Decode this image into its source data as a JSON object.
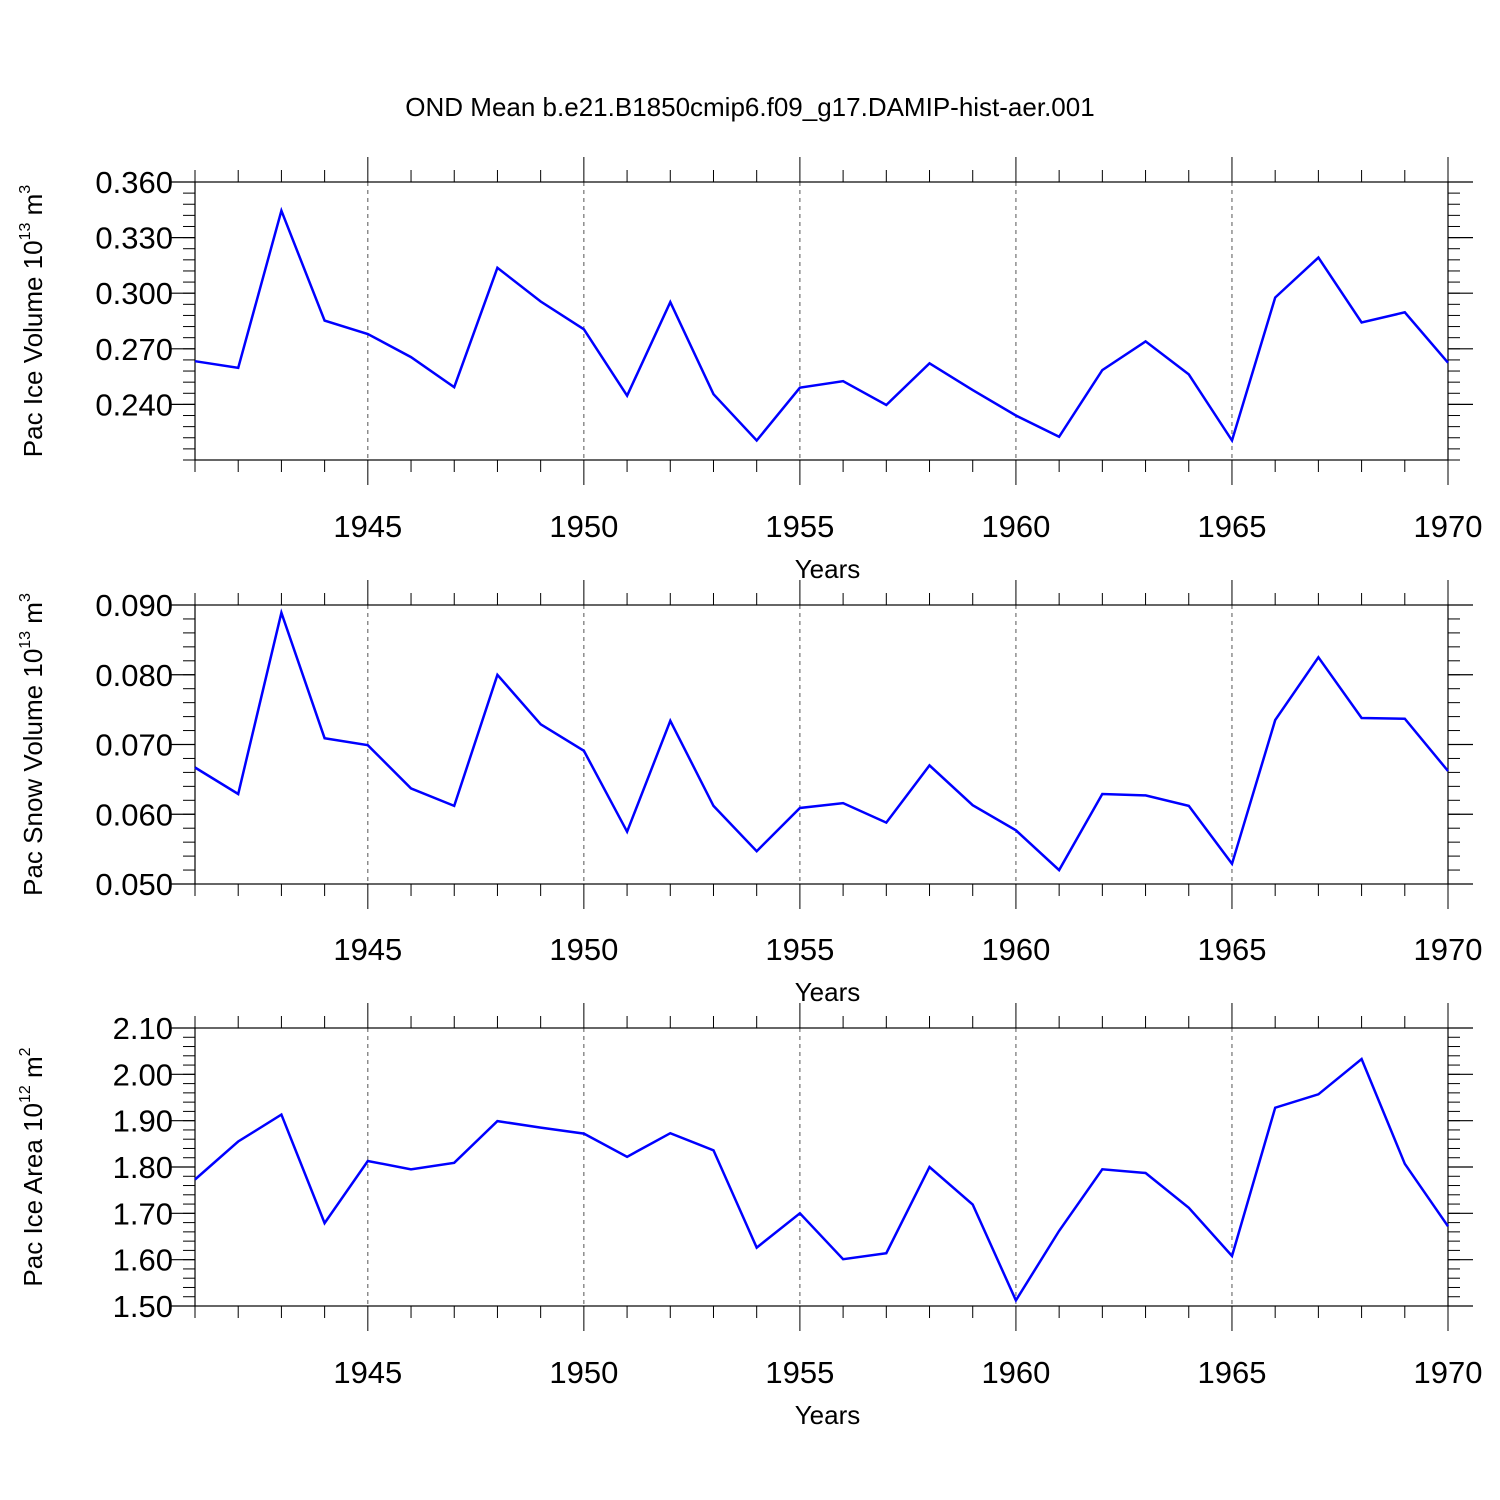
{
  "title": "OND Mean b.e21.B1850cmip6.f09_g17.DAMIP-hist-aer.001",
  "colors": {
    "line": "#0000ff",
    "axis": "#000000",
    "grid": "#555555"
  },
  "chart_data": [
    {
      "type": "line",
      "xlabel": "Years",
      "ylabel_main": "Pac Ice Volume 10",
      "ylabel_exp": "13",
      "ylabel_unit": " m",
      "ylabel_unit_exp": "3",
      "xlim": [
        1941,
        1970
      ],
      "ylim": [
        0.21,
        0.36
      ],
      "yticks": [
        0.24,
        0.27,
        0.3,
        0.33,
        0.36
      ],
      "ytick_labels": [
        "0.240",
        "0.270",
        "0.300",
        "0.330",
        "0.360"
      ],
      "xticks": [
        1945,
        1950,
        1955,
        1960,
        1965,
        1970
      ],
      "xtick_labels": [
        "1945",
        "1950",
        "1955",
        "1960",
        "1965",
        "1970"
      ],
      "grid": "vertical dashed at labeled years",
      "x": [
        1941,
        1942,
        1943,
        1944,
        1945,
        1946,
        1947,
        1948,
        1949,
        1950,
        1951,
        1952,
        1953,
        1954,
        1955,
        1956,
        1957,
        1958,
        1959,
        1960,
        1961,
        1962,
        1963,
        1964,
        1965,
        1966,
        1967,
        1968,
        1969,
        1970
      ],
      "series": [
        {
          "values": [
            0.2633,
            0.2597,
            0.3445,
            0.2852,
            0.278,
            0.2655,
            0.2493,
            0.3137,
            0.2955,
            0.2805,
            0.2447,
            0.2952,
            0.2455,
            0.2205,
            0.249,
            0.2525,
            0.2397,
            0.2622,
            0.2477,
            0.234,
            0.2225,
            0.2585,
            0.274,
            0.2562,
            0.2205,
            0.2977,
            0.3192,
            0.2842,
            0.2897,
            0.2625
          ]
        }
      ]
    },
    {
      "type": "line",
      "xlabel": "Years",
      "ylabel_main": "Pac Snow Volume 10",
      "ylabel_exp": "13",
      "ylabel_unit": " m",
      "ylabel_unit_exp": "3",
      "xlim": [
        1941,
        1970
      ],
      "ylim": [
        0.05,
        0.09
      ],
      "yticks": [
        0.05,
        0.06,
        0.07,
        0.08,
        0.09
      ],
      "ytick_labels": [
        "0.050",
        "0.060",
        "0.070",
        "0.080",
        "0.090"
      ],
      "xticks": [
        1945,
        1950,
        1955,
        1960,
        1965,
        1970
      ],
      "xtick_labels": [
        "1945",
        "1950",
        "1955",
        "1960",
        "1965",
        "1970"
      ],
      "grid": "vertical dashed at labeled years",
      "x": [
        1941,
        1942,
        1943,
        1944,
        1945,
        1946,
        1947,
        1948,
        1949,
        1950,
        1951,
        1952,
        1953,
        1954,
        1955,
        1956,
        1957,
        1958,
        1959,
        1960,
        1961,
        1962,
        1963,
        1964,
        1965,
        1966,
        1967,
        1968,
        1969,
        1970
      ],
      "series": [
        {
          "values": [
            0.0667,
            0.0629,
            0.0889,
            0.0709,
            0.0699,
            0.0637,
            0.0612,
            0.08,
            0.0729,
            0.0691,
            0.0575,
            0.0734,
            0.0612,
            0.0547,
            0.0609,
            0.0616,
            0.0588,
            0.067,
            0.0613,
            0.0577,
            0.052,
            0.0629,
            0.0627,
            0.0612,
            0.0529,
            0.0735,
            0.0825,
            0.0738,
            0.0737,
            0.0662
          ]
        }
      ]
    },
    {
      "type": "line",
      "xlabel": "Years",
      "ylabel_main": "Pac Ice Area 10",
      "ylabel_exp": "12",
      "ylabel_unit": " m",
      "ylabel_unit_exp": "2",
      "xlim": [
        1941,
        1970
      ],
      "ylim": [
        1.5,
        2.1
      ],
      "yticks": [
        1.5,
        1.6,
        1.7,
        1.8,
        1.9,
        2.0,
        2.1
      ],
      "ytick_labels": [
        "1.50",
        "1.60",
        "1.70",
        "1.80",
        "1.90",
        "2.00",
        "2.10"
      ],
      "xticks": [
        1945,
        1950,
        1955,
        1960,
        1965,
        1970
      ],
      "xtick_labels": [
        "1945",
        "1950",
        "1955",
        "1960",
        "1965",
        "1970"
      ],
      "grid": "vertical dashed at labeled years",
      "x": [
        1941,
        1942,
        1943,
        1944,
        1945,
        1946,
        1947,
        1948,
        1949,
        1950,
        1951,
        1952,
        1953,
        1954,
        1955,
        1956,
        1957,
        1958,
        1959,
        1960,
        1961,
        1962,
        1963,
        1964,
        1965,
        1966,
        1967,
        1968,
        1969,
        1970
      ],
      "series": [
        {
          "values": [
            1.773,
            1.855,
            1.913,
            1.679,
            1.813,
            1.795,
            1.809,
            1.899,
            1.885,
            1.872,
            1.822,
            1.873,
            1.836,
            1.626,
            1.7,
            1.601,
            1.614,
            1.8,
            1.719,
            1.512,
            1.662,
            1.795,
            1.787,
            1.712,
            1.608,
            1.928,
            1.957,
            2.033,
            1.807,
            1.672
          ]
        }
      ]
    }
  ]
}
